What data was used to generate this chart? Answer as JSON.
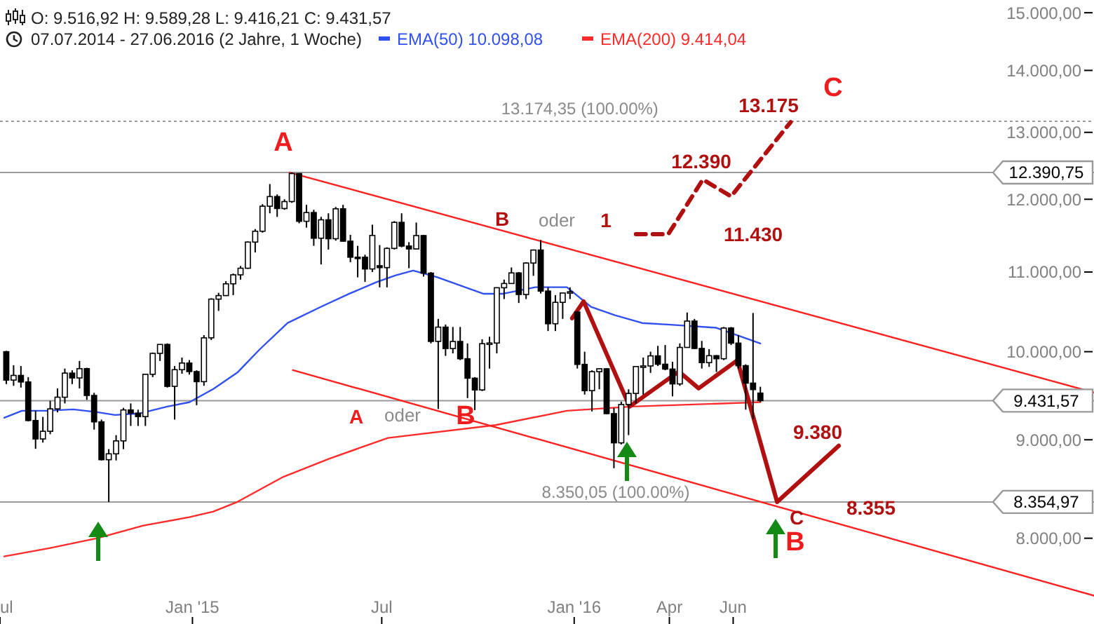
{
  "chart_data": {
    "type": "candlestick",
    "title": "O: 9.516,92  H: 9.589,28  L: 9.416,21  C: 9.431,57",
    "subtitle": "07.07.2014 - 27.06.2016 (2 Jahre, 1 Woche)",
    "log": true,
    "legend": "top left",
    "xlim": [
      "2014-07-01",
      "2017-05-12"
    ],
    "xticks": [
      {
        "value": "2014-07-01",
        "label": "ul"
      },
      {
        "value": "2015-01-01",
        "label": "Jan '15"
      },
      {
        "value": "2015-07-01",
        "label": "Jul"
      },
      {
        "value": "2016-01-01",
        "label": "Jan '16"
      },
      {
        "value": "2016-04-01",
        "label": "Apr"
      },
      {
        "value": "2016-06-01",
        "label": "Jun"
      }
    ],
    "ylim": [
      7220,
      15230
    ],
    "yticks": [
      {
        "value": 8000,
        "label": "8.000,00"
      },
      {
        "value": 9000,
        "label": "9.000,00"
      },
      {
        "value": 10000,
        "label": "10.000,00"
      },
      {
        "value": 11000,
        "label": "11.000,00"
      },
      {
        "value": 12000,
        "label": "12.000,00"
      },
      {
        "value": 13000,
        "label": "13.000,00"
      },
      {
        "value": 14000,
        "label": "14.000,00"
      },
      {
        "value": 15000,
        "label": "15.000,00"
      }
    ],
    "x": [
      "2014-07-07",
      "2014-07-14",
      "2014-07-21",
      "2014-07-28",
      "2014-08-04",
      "2014-08-11",
      "2014-08-18",
      "2014-08-25",
      "2014-09-01",
      "2014-09-08",
      "2014-09-15",
      "2014-09-22",
      "2014-09-29",
      "2014-10-06",
      "2014-10-13",
      "2014-10-20",
      "2014-10-27",
      "2014-11-03",
      "2014-11-10",
      "2014-11-17",
      "2014-11-24",
      "2014-12-01",
      "2014-12-08",
      "2014-12-15",
      "2014-12-22",
      "2014-12-29",
      "2015-01-05",
      "2015-01-12",
      "2015-01-19",
      "2015-01-26",
      "2015-02-02",
      "2015-02-09",
      "2015-02-16",
      "2015-02-23",
      "2015-03-02",
      "2015-03-09",
      "2015-03-16",
      "2015-03-23",
      "2015-03-30",
      "2015-04-06",
      "2015-04-13",
      "2015-04-20",
      "2015-04-27",
      "2015-05-04",
      "2015-05-11",
      "2015-05-18",
      "2015-05-25",
      "2015-06-01",
      "2015-06-08",
      "2015-06-15",
      "2015-06-22",
      "2015-06-29",
      "2015-07-06",
      "2015-07-13",
      "2015-07-20",
      "2015-07-27",
      "2015-08-03",
      "2015-08-10",
      "2015-08-17",
      "2015-08-24",
      "2015-08-31",
      "2015-09-07",
      "2015-09-14",
      "2015-09-21",
      "2015-09-28",
      "2015-10-05",
      "2015-10-12",
      "2015-10-19",
      "2015-10-26",
      "2015-11-02",
      "2015-11-09",
      "2015-11-16",
      "2015-11-23",
      "2015-11-30",
      "2015-12-07",
      "2015-12-14",
      "2015-12-21",
      "2015-12-28",
      "2016-01-04",
      "2016-01-11",
      "2016-01-18",
      "2016-01-25",
      "2016-02-01",
      "2016-02-08",
      "2016-02-15",
      "2016-02-22",
      "2016-02-29",
      "2016-03-07",
      "2016-03-14",
      "2016-03-21",
      "2016-03-28",
      "2016-04-04",
      "2016-04-11",
      "2016-04-18",
      "2016-04-25",
      "2016-05-02",
      "2016-05-09",
      "2016-05-16",
      "2016-05-23",
      "2016-05-30",
      "2016-06-06",
      "2016-06-13",
      "2016-06-20",
      "2016-06-27"
    ],
    "ohlc": [
      [
        10000,
        10010,
        9620,
        9666
      ],
      [
        9666,
        9840,
        9600,
        9720
      ],
      [
        9720,
        9830,
        9580,
        9644
      ],
      [
        9644,
        9700,
        9200,
        9210
      ],
      [
        9210,
        9320,
        8903,
        9009
      ],
      [
        9009,
        9250,
        8970,
        9092
      ],
      [
        9092,
        9430,
        9060,
        9339
      ],
      [
        9339,
        9570,
        9300,
        9470
      ],
      [
        9470,
        9800,
        9400,
        9747
      ],
      [
        9747,
        9780,
        9620,
        9691
      ],
      [
        9691,
        9890,
        9570,
        9799
      ],
      [
        9799,
        9810,
        9440,
        9490
      ],
      [
        9490,
        9520,
        9110,
        9195
      ],
      [
        9195,
        9220,
        8780,
        8788
      ],
      [
        8788,
        8900,
        8355,
        8850
      ],
      [
        8850,
        9050,
        8780,
        8988
      ],
      [
        8988,
        9350,
        8900,
        9327
      ],
      [
        9327,
        9400,
        9150,
        9291
      ],
      [
        9291,
        9330,
        9150,
        9253
      ],
      [
        9253,
        9740,
        9150,
        9733
      ],
      [
        9733,
        9990,
        9700,
        9980
      ],
      [
        9980,
        10090,
        9890,
        10087
      ],
      [
        10087,
        10100,
        9580,
        9594
      ],
      [
        9594,
        9830,
        9220,
        9787
      ],
      [
        9787,
        9930,
        9740,
        9865
      ],
      [
        9865,
        9900,
        9730,
        9765
      ],
      [
        9765,
        9780,
        9380,
        9648
      ],
      [
        9648,
        10200,
        9600,
        10167
      ],
      [
        10167,
        10660,
        10140,
        10649
      ],
      [
        10649,
        10730,
        10500,
        10694
      ],
      [
        10694,
        10880,
        10690,
        10846
      ],
      [
        10846,
        10980,
        10700,
        10963
      ],
      [
        10963,
        11080,
        10900,
        11050
      ],
      [
        11050,
        11410,
        11040,
        11401
      ],
      [
        11401,
        11580,
        11260,
        11550
      ],
      [
        11550,
        11930,
        11530,
        11901
      ],
      [
        11901,
        12220,
        11800,
        12039
      ],
      [
        12039,
        12070,
        11750,
        11868
      ],
      [
        11868,
        12000,
        11850,
        11967
      ],
      [
        11967,
        12390.75,
        11950,
        12375
      ],
      [
        12375,
        12380,
        11660,
        11688
      ],
      [
        11688,
        11920,
        11600,
        11811
      ],
      [
        11811,
        11850,
        11350,
        11454
      ],
      [
        11454,
        11750,
        11100,
        11709
      ],
      [
        11709,
        11800,
        11300,
        11447
      ],
      [
        11447,
        11890,
        11420,
        11864
      ],
      [
        11864,
        11920,
        11410,
        11413
      ],
      [
        11413,
        11500,
        11130,
        11197
      ],
      [
        11197,
        11350,
        10930,
        11196
      ],
      [
        11196,
        11230,
        10870,
        11040
      ],
      [
        11040,
        11640,
        11000,
        11492
      ],
      [
        11083,
        11360,
        10800,
        11058
      ],
      [
        11058,
        11330,
        10800,
        11315
      ],
      [
        11315,
        11690,
        11300,
        11673
      ],
      [
        11673,
        11800,
        11330,
        11347
      ],
      [
        11347,
        11400,
        11050,
        11308
      ],
      [
        11308,
        11670,
        11300,
        11490
      ],
      [
        11490,
        11500,
        10940,
        10985
      ],
      [
        10985,
        11000,
        10100,
        10124
      ],
      [
        10124,
        10400,
        9338,
        10298
      ],
      [
        10298,
        10330,
        9950,
        10038
      ],
      [
        10038,
        10300,
        9980,
        10123
      ],
      [
        10123,
        10300,
        9900,
        9916
      ],
      [
        9916,
        10100,
        9460,
        9688
      ],
      [
        9688,
        9700,
        9325,
        9553
      ],
      [
        9553,
        10150,
        9540,
        10096
      ],
      [
        10096,
        10180,
        9800,
        10104
      ],
      [
        10104,
        10800,
        9980,
        10795
      ],
      [
        10795,
        10900,
        10650,
        10850
      ],
      [
        10850,
        11060,
        10850,
        10988
      ],
      [
        10988,
        11000,
        10600,
        10708
      ],
      [
        10708,
        11130,
        10650,
        11119
      ],
      [
        11119,
        11300,
        10950,
        11293
      ],
      [
        11293,
        11430,
        10720,
        10752
      ],
      [
        10752,
        10800,
        10250,
        10340
      ],
      [
        10340,
        10700,
        10250,
        10608
      ],
      [
        10608,
        10730,
        10400,
        10727
      ],
      [
        10727,
        10800,
        10650,
        10743
      ],
      [
        10485,
        10500,
        9800,
        9849
      ],
      [
        9849,
        10000,
        9500,
        9545
      ],
      [
        9545,
        9780,
        9310,
        9764
      ],
      [
        9764,
        9800,
        9560,
        9798
      ],
      [
        9798,
        9800,
        9280,
        9286
      ],
      [
        9286,
        9350,
        8699,
        8967
      ],
      [
        8967,
        9420,
        8950,
        9388
      ],
      [
        9388,
        9560,
        9050,
        9513
      ],
      [
        9513,
        9830,
        9400,
        9824
      ],
      [
        9824,
        9930,
        9500,
        9831
      ],
      [
        9831,
        10000,
        9750,
        9950
      ],
      [
        9950,
        10070,
        9830,
        9851
      ],
      [
        9851,
        10080,
        9780,
        9794
      ],
      [
        9794,
        9880,
        9480,
        9622
      ],
      [
        9622,
        10100,
        9600,
        10051
      ],
      [
        10051,
        10480,
        10050,
        10373
      ],
      [
        10373,
        10400,
        10030,
        10039
      ],
      [
        10039,
        10130,
        9800,
        9870
      ],
      [
        9870,
        10030,
        9820,
        9952
      ],
      [
        9952,
        9960,
        9760,
        9916
      ],
      [
        9916,
        10300,
        9900,
        10287
      ],
      [
        10287,
        10300,
        10080,
        10103
      ],
      [
        10103,
        10200,
        9800,
        9834
      ],
      [
        9834,
        9850,
        9330,
        9631
      ],
      [
        9631,
        10474,
        9226,
        9557
      ],
      [
        9516.92,
        9589.28,
        9416.21,
        9431.57
      ]
    ],
    "series": [
      {
        "name": "EMA(50) 10.098,08",
        "type": "line",
        "color": "#3050f0",
        "x": [
          "2014-07-05",
          "2014-07-22",
          "2014-08-14",
          "2014-09-09",
          "2014-10-02",
          "2014-10-19",
          "2014-11-11",
          "2014-12-08",
          "2014-12-29",
          "2015-01-21",
          "2015-02-13",
          "2015-03-06",
          "2015-04-02",
          "2015-05-04",
          "2015-05-31",
          "2015-06-26",
          "2015-07-14",
          "2015-07-31",
          "2015-08-23",
          "2015-10-06",
          "2015-10-25",
          "2015-11-25",
          "2015-12-25",
          "2016-01-17",
          "2016-02-09",
          "2016-03-06",
          "2016-04-02",
          "2016-05-16",
          "2016-06-27"
        ],
        "values": [
          9240,
          9318,
          9318,
          9333,
          9302,
          9271,
          9287,
          9365,
          9413,
          9564,
          9754,
          10024,
          10349,
          10552,
          10718,
          10867,
          10954,
          11019,
          10932,
          10718,
          10718,
          10802,
          10802,
          10552,
          10446,
          10349,
          10328,
          10290,
          10098.08
        ]
      },
      {
        "name": "EMA(200) 9.414,04",
        "type": "line",
        "color": "#ff2a2a",
        "x": [
          "2014-07-05",
          "2014-08-18",
          "2014-10-02",
          "2014-11-15",
          "2014-12-29",
          "2015-01-21",
          "2015-02-13",
          "2015-03-29",
          "2015-05-12",
          "2015-07-07",
          "2015-10-18",
          "2015-12-25",
          "2016-02-25",
          "2016-06-27"
        ],
        "values": [
          7828,
          7907,
          8000,
          8122,
          8204,
          8259,
          8356,
          8610,
          8800,
          9020,
          9160,
          9318,
          9365,
          9414.04
        ]
      },
      {
        "type": "line",
        "color": "#ff2020",
        "x": [
          "2015-04-04",
          "2017-05-12"
        ],
        "values": [
          12390,
          9524
        ]
      },
      {
        "type": "line",
        "color": "#ff2020",
        "x": [
          "2015-04-07",
          "2017-05-12"
        ],
        "values": [
          9782,
          7469
        ]
      },
      {
        "type": "line",
        "color": "#b01010",
        "line_style": "solid",
        "x": [
          "2015-12-30",
          "2016-01-10",
          "2016-02-23",
          "2016-04-10",
          "2016-04-29",
          "2016-06-05",
          "2016-07-13",
          "2016-09-10"
        ],
        "values": [
          10408,
          10620,
          9365,
          9766,
          9571,
          9898,
          8355,
          8936
        ]
      },
      {
        "type": "line",
        "color": "#b01010",
        "line_style": "dashed",
        "x": [
          "2016-02-29",
          "2016-03-31",
          "2016-05-03",
          "2016-05-30",
          "2016-07-26"
        ],
        "values": [
          11510,
          11510,
          12287,
          12042,
          13161
        ]
      }
    ],
    "ref_lines": [
      {
        "axis": "y",
        "value": 13174.35,
        "label": "13.174,35 (100.00%)",
        "line_style": "dotted"
      },
      {
        "axis": "y",
        "value": 12390.75,
        "label": "12.390,75",
        "color": "#9a9a9a"
      },
      {
        "axis": "y",
        "value": 9431.57,
        "label": "9.431,57",
        "color": "#9a9a9a"
      },
      {
        "axis": "y",
        "value": 8354.97,
        "label": "8.354,97",
        "color": "#9a9a9a"
      }
    ],
    "annotations": [
      "A",
      "B",
      "oder",
      "1",
      "12.390",
      "11.430",
      "13.175",
      "C",
      "A",
      "oder",
      "B",
      "9.380",
      "8.355",
      "C",
      "B",
      "8.350,05 (100.00%)"
    ]
  }
}
